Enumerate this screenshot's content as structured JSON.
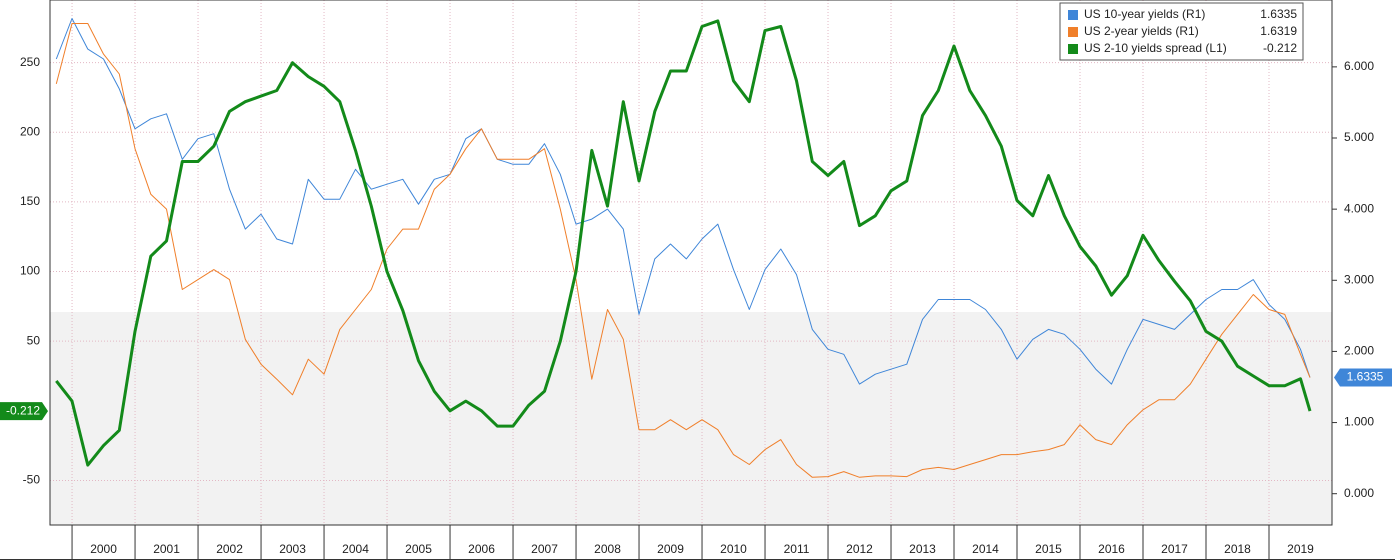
{
  "chart_data": {
    "type": "line",
    "x": [
      1999.75,
      2000.0,
      2000.25,
      2000.5,
      2000.75,
      2001.0,
      2001.25,
      2001.5,
      2001.75,
      2002.0,
      2002.25,
      2002.5,
      2002.75,
      2003.0,
      2003.25,
      2003.5,
      2003.75,
      2004.0,
      2004.25,
      2004.5,
      2004.75,
      2005.0,
      2005.25,
      2005.5,
      2005.75,
      2006.0,
      2006.25,
      2006.5,
      2006.75,
      2007.0,
      2007.25,
      2007.5,
      2007.75,
      2008.0,
      2008.25,
      2008.5,
      2008.75,
      2009.0,
      2009.25,
      2009.5,
      2009.75,
      2010.0,
      2010.25,
      2010.5,
      2010.75,
      2011.0,
      2011.25,
      2011.5,
      2011.75,
      2012.0,
      2012.25,
      2012.5,
      2012.75,
      2013.0,
      2013.25,
      2013.5,
      2013.75,
      2014.0,
      2014.25,
      2014.5,
      2014.75,
      2015.0,
      2015.25,
      2015.5,
      2015.75,
      2016.0,
      2016.25,
      2016.5,
      2016.75,
      2017.0,
      2017.25,
      2017.5,
      2017.75,
      2018.0,
      2018.25,
      2018.5,
      2018.75,
      2019.0,
      2019.25,
      2019.5,
      2019.65
    ],
    "series": [
      {
        "name": "US 10-year yields (R1)",
        "color": "#3f86d8",
        "axis": "y2",
        "width": 1,
        "last_value_label": "1.6335",
        "values": [
          6.11,
          6.68,
          6.25,
          6.11,
          5.69,
          5.13,
          5.27,
          5.34,
          4.7,
          4.99,
          5.06,
          4.28,
          3.72,
          3.93,
          3.58,
          3.51,
          4.42,
          4.14,
          4.14,
          4.56,
          4.28,
          4.35,
          4.42,
          4.07,
          4.42,
          4.49,
          4.99,
          5.13,
          4.7,
          4.63,
          4.63,
          4.92,
          4.49,
          3.79,
          3.86,
          4.0,
          3.72,
          2.52,
          3.3,
          3.51,
          3.3,
          3.58,
          3.79,
          3.15,
          2.59,
          3.15,
          3.44,
          3.08,
          2.31,
          2.03,
          1.96,
          1.54,
          1.68,
          1.75,
          1.82,
          2.45,
          2.73,
          2.73,
          2.73,
          2.59,
          2.31,
          1.89,
          2.17,
          2.31,
          2.24,
          2.03,
          1.75,
          1.54,
          2.03,
          2.45,
          2.38,
          2.31,
          2.52,
          2.73,
          2.87,
          2.87,
          3.01,
          2.66,
          2.45,
          2.03,
          1.6335
        ]
      },
      {
        "name": "US 2-year yields (R1)",
        "color": "#f07f2a",
        "axis": "y2",
        "width": 1,
        "last_value_label": "1.6319",
        "values": [
          5.76,
          6.61,
          6.61,
          6.18,
          5.9,
          4.85,
          4.21,
          4.0,
          2.87,
          3.01,
          3.15,
          3.01,
          2.17,
          1.82,
          1.61,
          1.39,
          1.89,
          1.68,
          2.31,
          2.59,
          2.87,
          3.44,
          3.72,
          3.72,
          4.28,
          4.49,
          4.85,
          5.13,
          4.7,
          4.7,
          4.7,
          4.85,
          4.0,
          3.01,
          1.61,
          2.59,
          2.17,
          0.9,
          0.9,
          1.04,
          0.9,
          1.04,
          0.9,
          0.55,
          0.41,
          0.62,
          0.76,
          0.41,
          0.23,
          0.24,
          0.31,
          0.23,
          0.25,
          0.25,
          0.24,
          0.34,
          0.37,
          0.34,
          0.41,
          0.48,
          0.55,
          0.55,
          0.59,
          0.62,
          0.69,
          0.97,
          0.76,
          0.69,
          0.97,
          1.18,
          1.32,
          1.32,
          1.54,
          1.89,
          2.24,
          2.52,
          2.8,
          2.59,
          2.52,
          1.96,
          1.6319
        ]
      },
      {
        "name": "US 2-10 yields spread (L1)",
        "color": "#138a1a",
        "axis": "y",
        "width": 3,
        "last_value_label": "-0.212",
        "values": [
          21.5,
          7,
          -39,
          -25,
          -14,
          57,
          111,
          122,
          179,
          179,
          190,
          215,
          222,
          226,
          230,
          250,
          240,
          233,
          222,
          187,
          147,
          100,
          72,
          36,
          14,
          0,
          7,
          0,
          -11,
          -11,
          4,
          14,
          50,
          100,
          187,
          147,
          222,
          165,
          215,
          244,
          244,
          276,
          280,
          237,
          222,
          273,
          276,
          237,
          179,
          169,
          179,
          133,
          140,
          158,
          165,
          212,
          230,
          262,
          230,
          212,
          190,
          151,
          140,
          169,
          140,
          118,
          104,
          83,
          97,
          126,
          108,
          93,
          79,
          57,
          50,
          32,
          25,
          18,
          18,
          23,
          -0.212
        ]
      }
    ],
    "xlim": [
      1999.65,
      2020.0
    ],
    "xticks": [
      2000,
      2001,
      2002,
      2003,
      2004,
      2005,
      2006,
      2007,
      2008,
      2009,
      2010,
      2011,
      2012,
      2013,
      2014,
      2015,
      2016,
      2017,
      2018,
      2019
    ],
    "ylim": [
      -82,
      295
    ],
    "yticks": [
      -50,
      50,
      100,
      150,
      200,
      250
    ],
    "y2lim": [
      -0.44,
      6.94
    ],
    "y2ticks": [
      {
        "value": 0,
        "label": "0.000"
      },
      {
        "value": 1,
        "label": "1.000"
      },
      {
        "value": 2,
        "label": "2.000"
      },
      {
        "value": 3,
        "label": "3.000"
      },
      {
        "value": 4,
        "label": "4.000"
      },
      {
        "value": 5,
        "label": "5.000"
      },
      {
        "value": 6,
        "label": "6.000"
      }
    ],
    "grid": true,
    "legend": "top-right"
  }
}
